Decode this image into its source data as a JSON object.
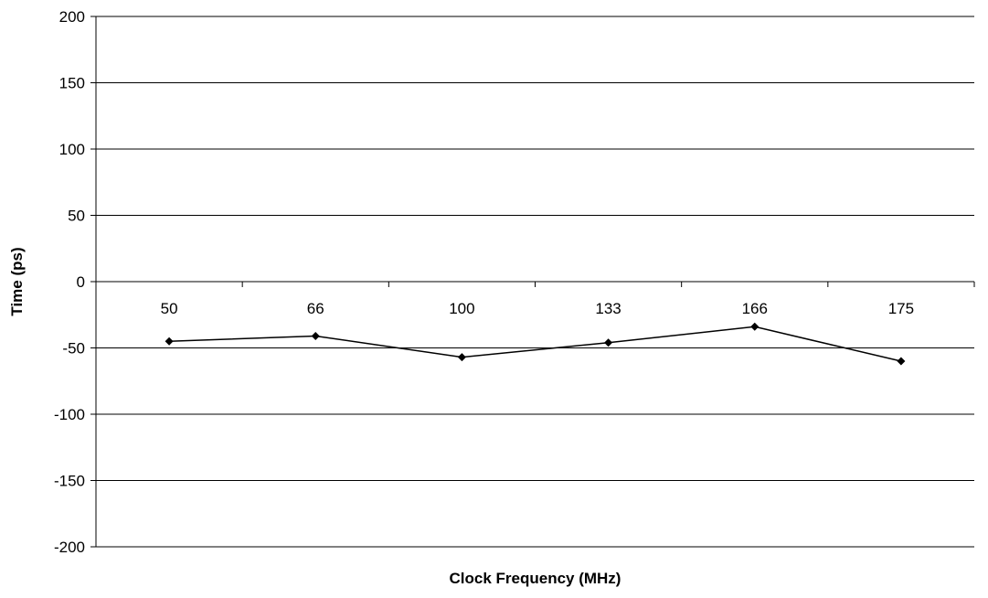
{
  "chart_data": {
    "type": "line",
    "title": "",
    "xlabel": "Clock Frequency (MHz)",
    "ylabel": "Time (ps)",
    "categories": [
      "50",
      "66",
      "100",
      "133",
      "166",
      "175"
    ],
    "series": [
      {
        "values": [
          -45,
          -41,
          -57,
          -46,
          -34,
          -60
        ],
        "color": "#000000",
        "marker": "diamond"
      }
    ],
    "ylim": [
      -200,
      200
    ],
    "yticks": [
      "200",
      "150",
      "100",
      "50",
      "0",
      "-50",
      "-100",
      "-150",
      "-200"
    ],
    "ytick_values": [
      200,
      150,
      100,
      50,
      0,
      -50,
      -100,
      -150,
      -200
    ],
    "grid": "horizontal",
    "legend": "none"
  }
}
